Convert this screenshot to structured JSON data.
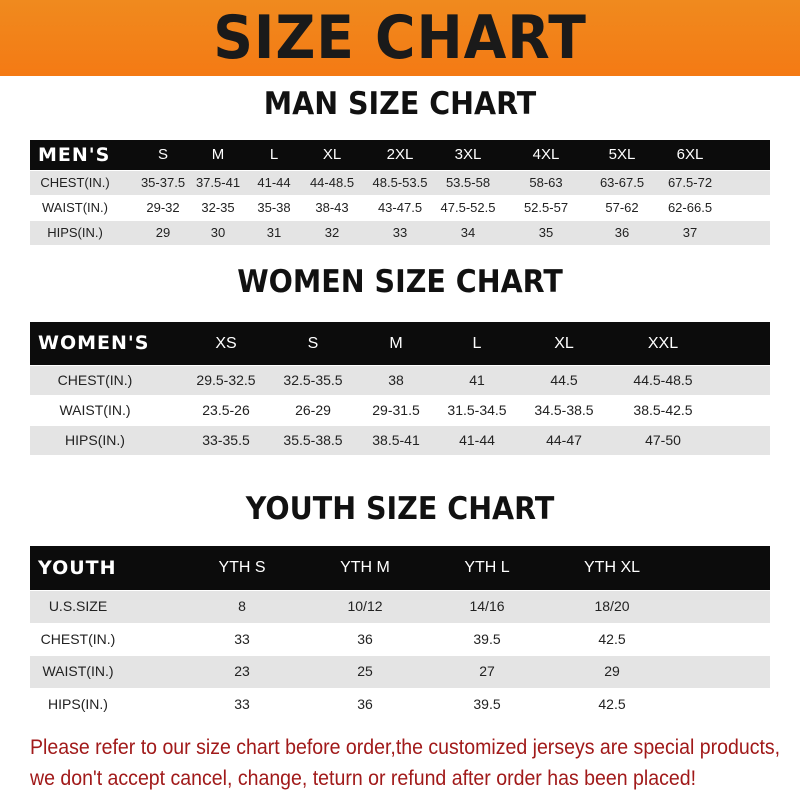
{
  "banner": {
    "title": "SIZE CHART",
    "color": "#f47f17"
  },
  "men": {
    "title": "MAN SIZE CHART",
    "header": [
      "MEN'S",
      "S",
      "M",
      "L",
      "XL",
      "2XL",
      "3XL",
      "4XL",
      "5XL",
      "6XL"
    ],
    "rows": [
      [
        "CHEST(IN.)",
        "35-37.5",
        "37.5-41",
        "41-44",
        "44-48.5",
        "48.5-53.5",
        "53.5-58",
        "58-63",
        "63-67.5",
        "67.5-72"
      ],
      [
        "WAIST(IN.)",
        "29-32",
        "32-35",
        "35-38",
        "38-43",
        "43-47.5",
        "47.5-52.5",
        "52.5-57",
        "57-62",
        "62-66.5"
      ],
      [
        "HIPS(IN.)",
        "29",
        "30",
        "31",
        "32",
        "33",
        "34",
        "35",
        "36",
        "37"
      ]
    ]
  },
  "women": {
    "title": "WOMEN SIZE CHART",
    "header": [
      "WOMEN'S",
      "XS",
      "S",
      "M",
      "L",
      "XL",
      "XXL"
    ],
    "rows": [
      [
        "CHEST(IN.)",
        "29.5-32.5",
        "32.5-35.5",
        "38",
        "41",
        "44.5",
        "44.5-48.5"
      ],
      [
        "WAIST(IN.)",
        "23.5-26",
        "26-29",
        "29-31.5",
        "31.5-34.5",
        "34.5-38.5",
        "38.5-42.5"
      ],
      [
        "HIPS(IN.)",
        "33-35.5",
        "35.5-38.5",
        "38.5-41",
        "41-44",
        "44-47",
        "47-50"
      ]
    ]
  },
  "youth": {
    "title": "YOUTH SIZE CHART",
    "header": [
      "YOUTH",
      "YTH S",
      "YTH M",
      "YTH L",
      "YTH XL"
    ],
    "rows": [
      [
        "U.S.SIZE",
        "8",
        "10/12",
        "14/16",
        "18/20"
      ],
      [
        "CHEST(IN.)",
        "33",
        "36",
        "39.5",
        "42.5"
      ],
      [
        "WAIST(IN.)",
        "23",
        "25",
        "27",
        "29"
      ],
      [
        "HIPS(IN.)",
        "33",
        "36",
        "39.5",
        "42.5"
      ]
    ]
  },
  "note": {
    "line1": "Please refer to our size chart before order,the customized jerseys are special products,",
    "line2": "we don't accept cancel, change, teturn or refund after order has been placed!",
    "color": "#a11a1a"
  }
}
